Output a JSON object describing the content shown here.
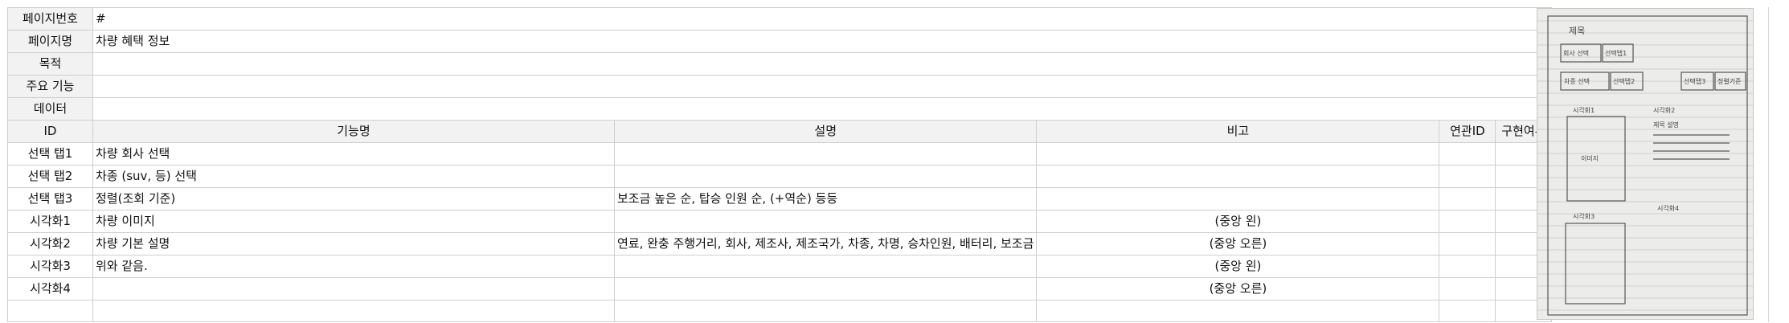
{
  "meta_rows": [
    {
      "label": "페이지번호",
      "value": "#"
    },
    {
      "label": "페이지명",
      "value": "차량 혜택 정보"
    },
    {
      "label": "목적",
      "value": ""
    },
    {
      "label": "주요 기능",
      "value": ""
    },
    {
      "label": "데이터",
      "value": ""
    }
  ],
  "header": {
    "id": "ID",
    "feature": "기능명",
    "description": "설명",
    "remark": "비고",
    "related_id": "연관ID",
    "implemented": "구현여부"
  },
  "rows": [
    {
      "id": "선택 탭1",
      "feature": "차량 회사 선택",
      "description": "",
      "remark": "",
      "related": "",
      "impl": ""
    },
    {
      "id": "선택 탭2",
      "feature": "차종 (suv, 등) 선택",
      "description": "",
      "remark": "",
      "related": "",
      "impl": ""
    },
    {
      "id": "선택 탭3",
      "feature": "정렬(조회 기준)",
      "description": "보조금 높은 순, 탑승 인원 순, (+역순) 등등",
      "remark": "",
      "related": "",
      "impl": ""
    },
    {
      "id": "시각화1",
      "feature": "차량 이미지",
      "description": "",
      "remark": "(중앙 왼)",
      "related": "",
      "impl": ""
    },
    {
      "id": "시각화2",
      "feature": "차량 기본 설명",
      "description": "연료, 완충 주행거리, 회사, 제조사, 제조국가, 차종, 차명, 승차인원, 배터리, 보조금",
      "remark": "(중앙 오른)",
      "related": "",
      "impl": ""
    },
    {
      "id": "시각화3",
      "feature": "위와 같음.",
      "description": "",
      "remark": "(중앙 왼)",
      "related": "",
      "impl": ""
    },
    {
      "id": "시각화4",
      "feature": "",
      "description": "",
      "remark": "(중앙 오른)",
      "related": "",
      "impl": ""
    },
    {
      "id": "",
      "feature": "",
      "description": "",
      "remark": "",
      "related": "",
      "impl": ""
    }
  ],
  "sketch": {
    "title": "제목",
    "company_select": "회사 선택",
    "tab1": "선택탭1",
    "type_select": "차종 선택",
    "tab2": "선택탭2",
    "tab3": "선택탭3",
    "sort": "정렬기준",
    "vis1": "시각화1",
    "vis2": "시각화2",
    "vis2_note": "제목 설명",
    "image": "이미지",
    "vis3": "시각화3",
    "vis4": "시각화4"
  }
}
